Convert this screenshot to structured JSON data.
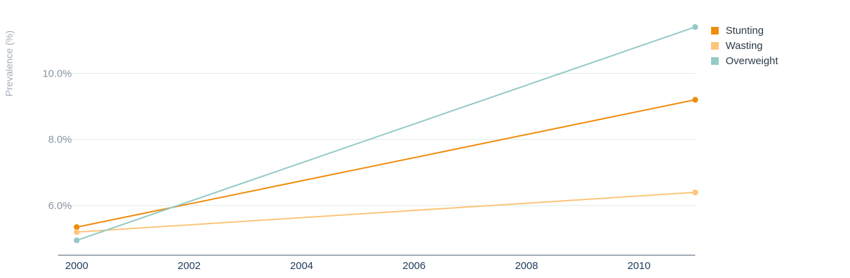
{
  "chart_data": {
    "type": "line",
    "ylabel": "Prevalence (%)",
    "xlabel": "",
    "x": [
      2000,
      2011
    ],
    "x_ticks": [
      "2000",
      "2002",
      "2004",
      "2006",
      "2008",
      "2010"
    ],
    "y_ticks": [
      "6.0%",
      "8.0%",
      "10.0%"
    ],
    "xlim": [
      2000,
      2011
    ],
    "ylim": [
      4.5,
      11.8
    ],
    "grid": true,
    "legend_position": "top-right",
    "series": [
      {
        "name": "Stunting",
        "color": "#ee8c0b",
        "values": [
          5.35,
          9.2
        ]
      },
      {
        "name": "Wasting",
        "color": "#fcc57a",
        "values": [
          5.2,
          6.4
        ]
      },
      {
        "name": "Overweight",
        "color": "#93c9c6",
        "values": [
          4.95,
          11.4
        ]
      }
    ]
  }
}
